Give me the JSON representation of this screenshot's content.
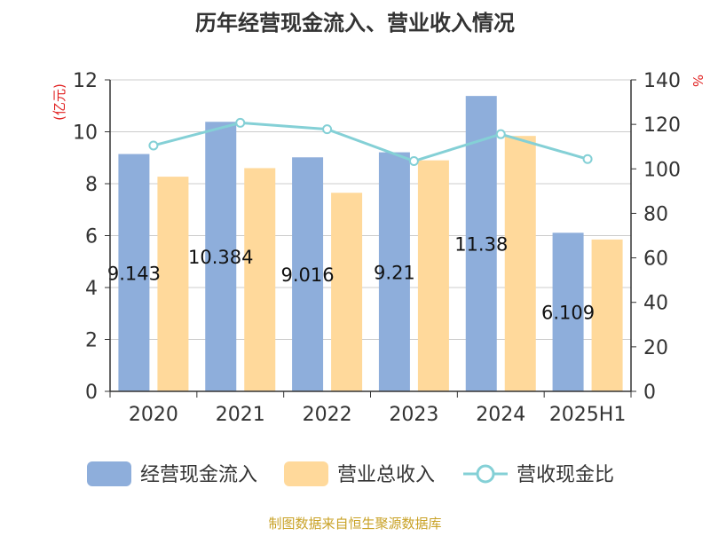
{
  "chart_data": {
    "type": "bar",
    "title": "历年经营现金流入、营业收入情况",
    "categories": [
      "2020",
      "2021",
      "2022",
      "2023",
      "2024",
      "2025H1"
    ],
    "series": [
      {
        "name": "经营现金流入",
        "type": "bar",
        "axis": "left",
        "color": "#8eaedb",
        "values": [
          9.143,
          10.384,
          9.016,
          9.21,
          11.38,
          6.109
        ],
        "labels": [
          "9.143",
          "10.384",
          "9.016",
          "9.21",
          "11.38",
          "6.109"
        ]
      },
      {
        "name": "营业总收入",
        "type": "bar",
        "axis": "left",
        "color": "#ffd99b",
        "values": [
          8.27,
          8.6,
          7.65,
          8.9,
          9.84,
          5.85
        ]
      },
      {
        "name": "营收现金比",
        "type": "line",
        "axis": "right",
        "color": "#84d0d6",
        "values": [
          110.5,
          120.7,
          117.8,
          103.5,
          115.6,
          104.4
        ]
      }
    ],
    "y_left": {
      "label": "(亿元)",
      "min": 0,
      "max": 12,
      "ticks": [
        0,
        2,
        4,
        6,
        8,
        10,
        12
      ]
    },
    "y_right": {
      "label": "%",
      "min": 0,
      "max": 140,
      "ticks": [
        0,
        20,
        40,
        60,
        80,
        100,
        120,
        140
      ]
    },
    "grid": true,
    "legend_position": "bottom"
  },
  "source": "制图数据来自恒生聚源数据库"
}
